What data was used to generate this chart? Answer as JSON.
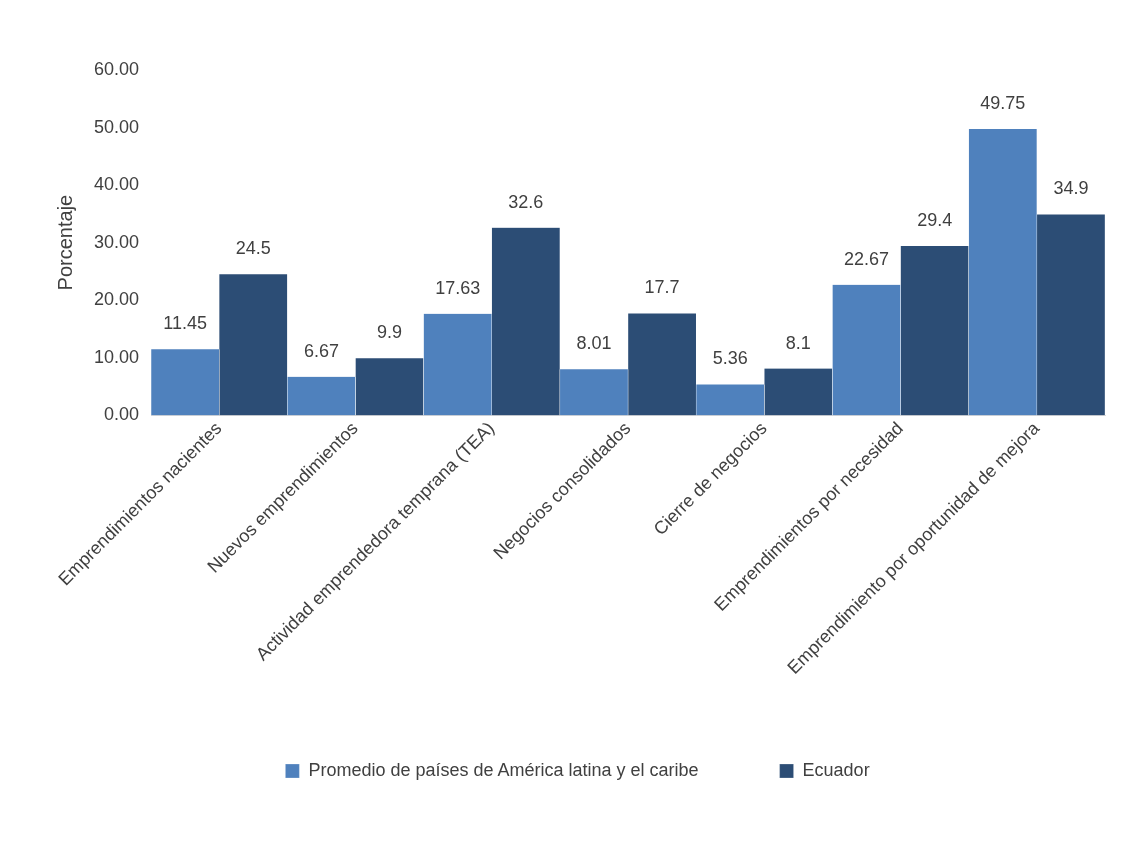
{
  "chart_data": {
    "type": "bar",
    "ylabel": "Porcentaje",
    "categories": [
      "Emprendimientos nacientes",
      "Nuevos emprendimientos",
      "Actividad emprendedora temprana (TEA)",
      "Negocios consolidados",
      "Cierre de negocios",
      "Emprendimientos por necesidad",
      "Emprendimiento por oportunidad de mejora"
    ],
    "series": [
      {
        "name": "Promedio de países de América latina y el caribe",
        "color": "#4f81bd",
        "values": [
          11.45,
          6.67,
          17.63,
          8.01,
          5.36,
          22.67,
          49.75
        ]
      },
      {
        "name": "Ecuador",
        "color": "#2c4d75",
        "values": [
          24.5,
          9.9,
          32.6,
          17.7,
          8.1,
          29.4,
          34.9
        ]
      }
    ],
    "ylim": [
      0,
      60
    ],
    "yticks": [
      {
        "value": 0,
        "label": "0.00"
      },
      {
        "value": 10,
        "label": "10.00"
      },
      {
        "value": 20,
        "label": "20.00"
      },
      {
        "value": 30,
        "label": "30.00"
      },
      {
        "value": 40,
        "label": "40.00"
      },
      {
        "value": 50,
        "label": "50.00"
      },
      {
        "value": 60,
        "label": "60.00"
      }
    ],
    "data_labels": true,
    "legend": "bottom",
    "grid": false
  }
}
